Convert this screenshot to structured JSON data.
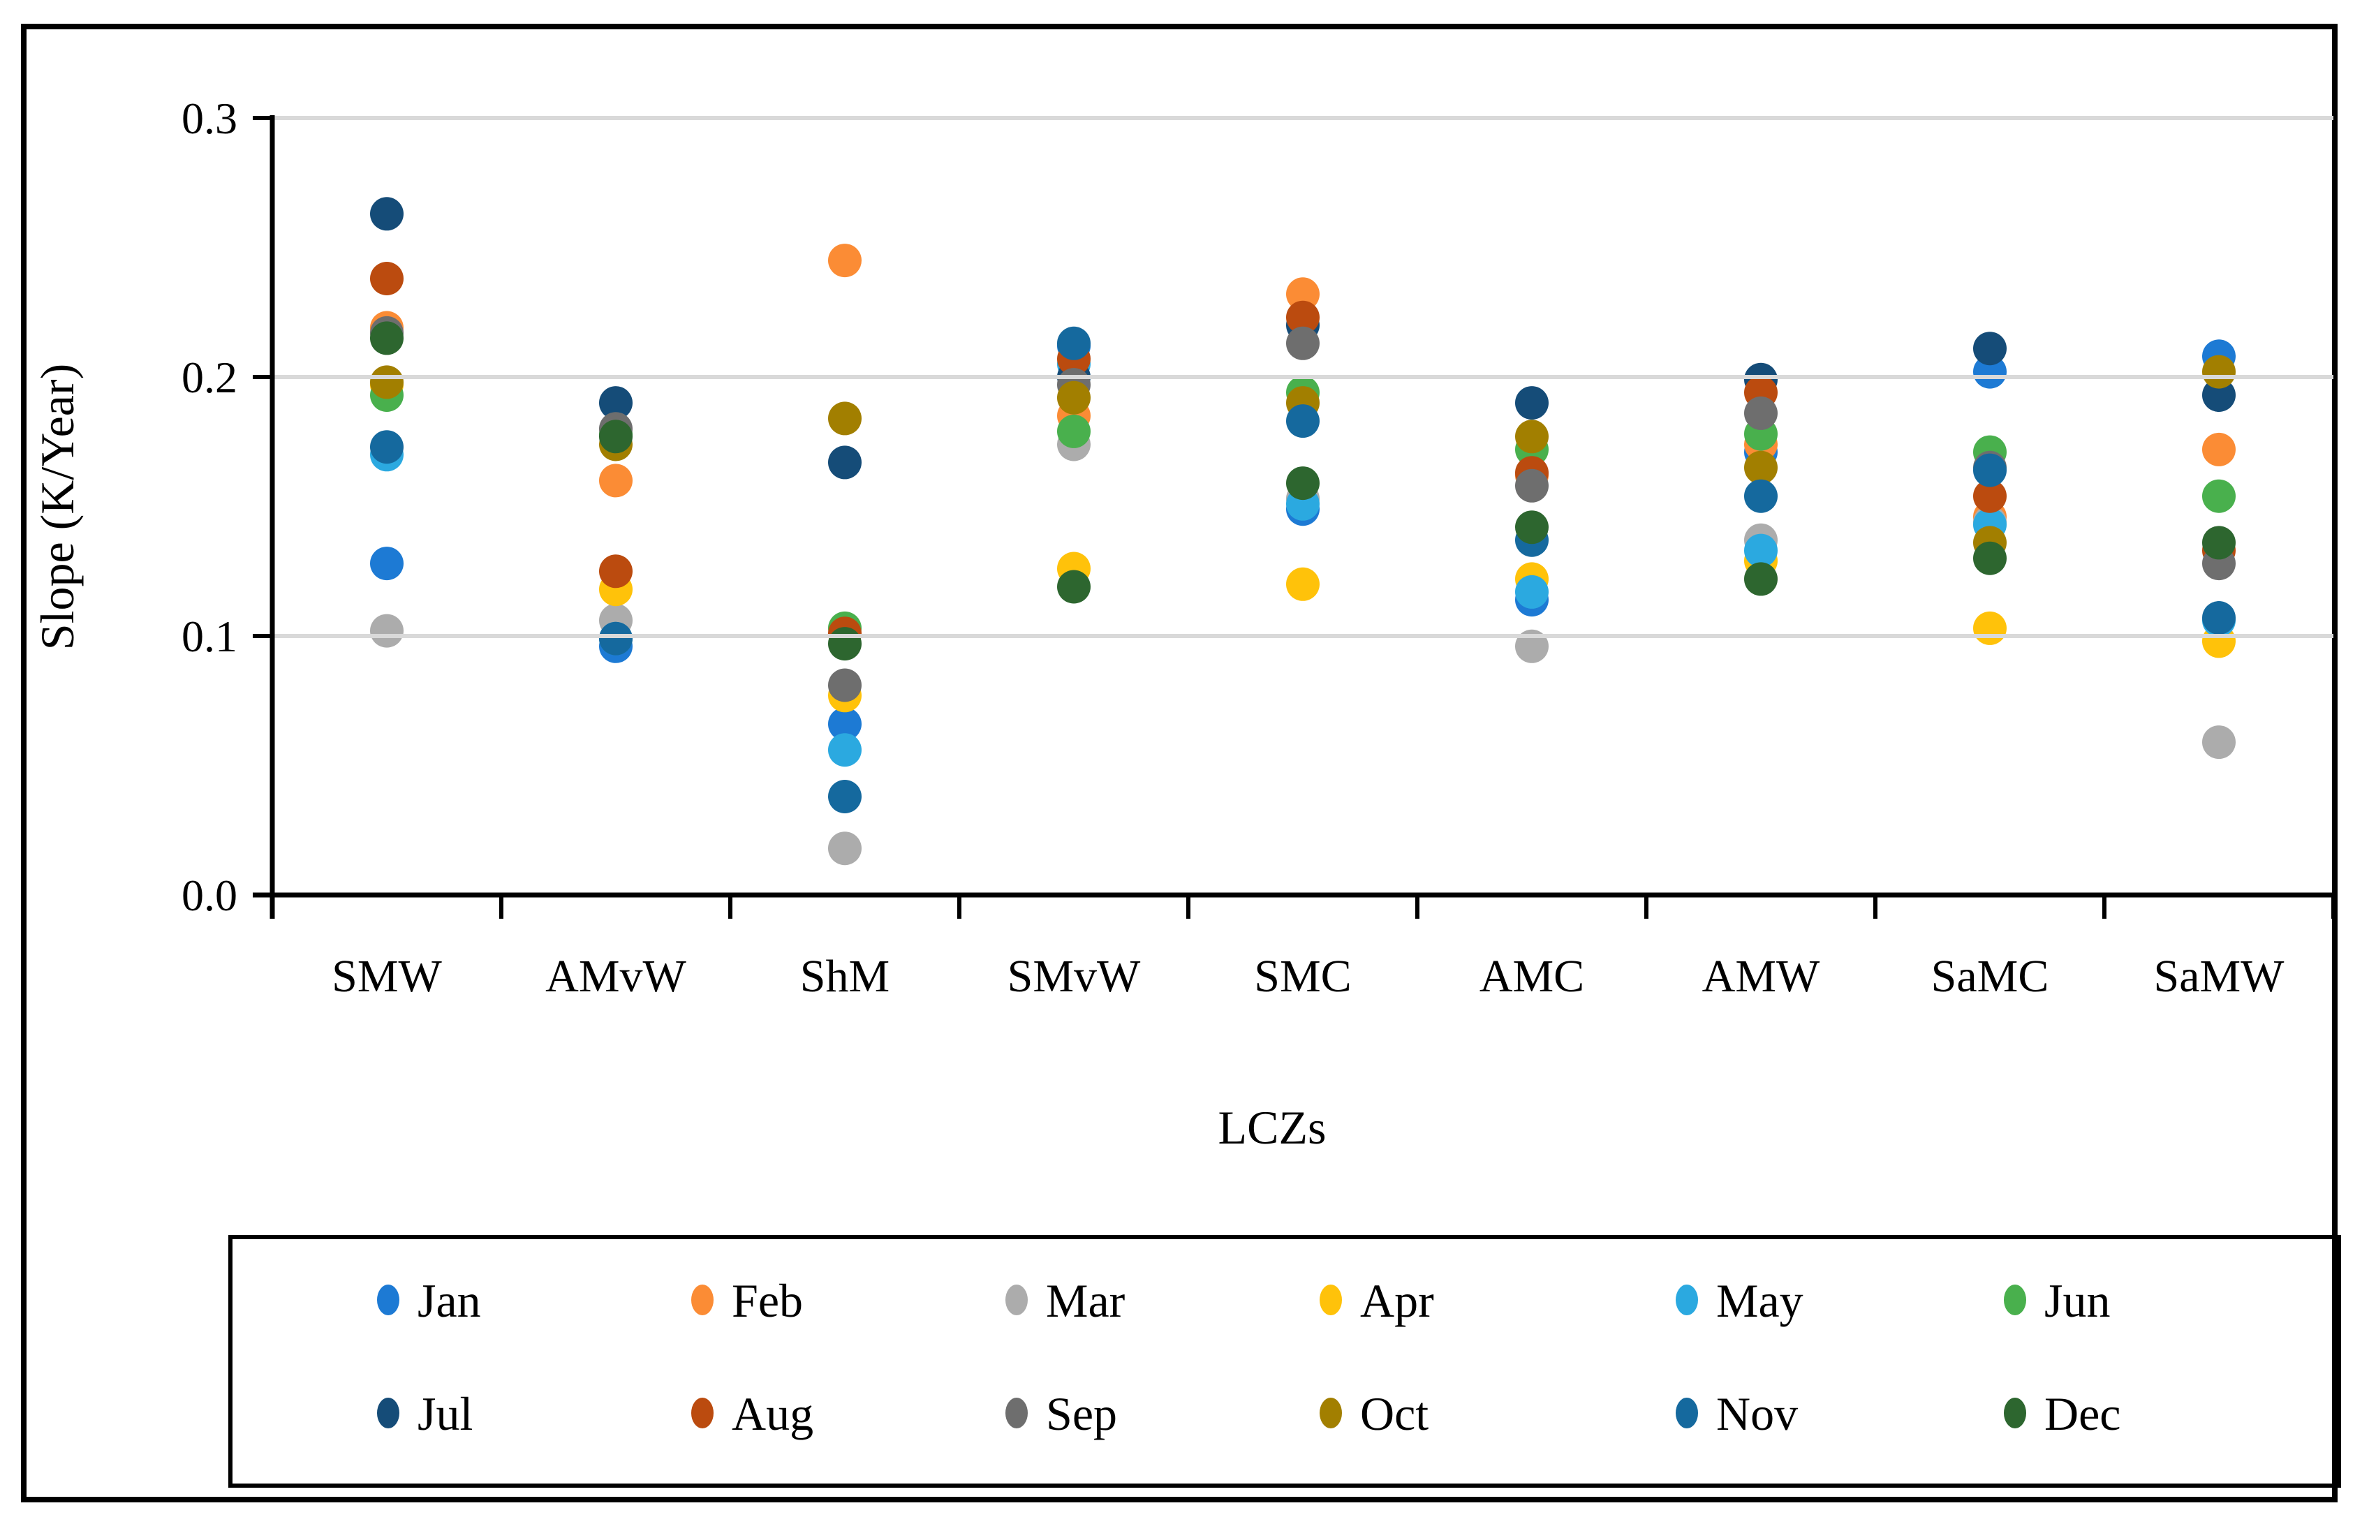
{
  "figure": {
    "background": "#FFFFFF",
    "frame_color": "#000000"
  },
  "chart_data": {
    "type": "scatter",
    "title": "",
    "xlabel": "LCZs",
    "ylabel": "Slope (K/Year)",
    "ylim": [
      0.0,
      0.3
    ],
    "ytick_labels": [
      "0.0",
      "0.1",
      "0.2",
      "0.3"
    ],
    "grid": "horizontal",
    "gridline_color": "#D9D9D9",
    "axis_color": "#000000",
    "legend_position": "bottom",
    "legend_rows": [
      [
        "Jan",
        "Feb",
        "Mar",
        "Apr",
        "May",
        "Jun"
      ],
      [
        "Jul",
        "Aug",
        "Sep",
        "Oct",
        "Nov",
        "Dec"
      ]
    ],
    "categories": [
      "SMW",
      "AMvW",
      "ShM",
      "SMvW",
      "SMC",
      "AMC",
      "AMW",
      "SaMC",
      "SaMW"
    ],
    "series": [
      {
        "name": "Jan",
        "color": "#1D7AD4",
        "values": [
          0.128,
          0.096,
          0.066,
          0.212,
          0.149,
          0.114,
          0.171,
          0.202,
          0.208
        ]
      },
      {
        "name": "Feb",
        "color": "#FB8C35",
        "values": [
          0.219,
          0.16,
          0.245,
          0.185,
          0.232,
          0.162,
          0.174,
          0.146,
          0.172
        ]
      },
      {
        "name": "Mar",
        "color": "#ACACAC",
        "values": [
          0.102,
          0.106,
          0.018,
          0.174,
          0.153,
          0.096,
          0.137,
          0.144,
          0.059
        ]
      },
      {
        "name": "Apr",
        "color": "#FFC20A",
        "values": [
          0.197,
          0.118,
          0.077,
          0.126,
          0.12,
          0.122,
          0.129,
          0.103,
          0.098
        ]
      },
      {
        "name": "May",
        "color": "#2BA9E0",
        "values": [
          0.17,
          0.099,
          0.056,
          0.205,
          0.151,
          0.117,
          0.133,
          0.143,
          0.106
        ]
      },
      {
        "name": "Jun",
        "color": "#49B04D",
        "values": [
          0.193,
          0.178,
          0.103,
          0.179,
          0.194,
          0.172,
          0.178,
          0.171,
          0.154
        ]
      },
      {
        "name": "Jul",
        "color": "#154C78",
        "values": [
          0.263,
          0.19,
          0.167,
          0.2,
          0.22,
          0.19,
          0.199,
          0.211,
          0.193
        ]
      },
      {
        "name": "Aug",
        "color": "#BB4B0F",
        "values": [
          0.238,
          0.125,
          0.101,
          0.207,
          0.223,
          0.163,
          0.194,
          0.154,
          0.133
        ]
      },
      {
        "name": "Sep",
        "color": "#6E6E6E",
        "values": [
          0.217,
          0.18,
          0.081,
          0.197,
          0.213,
          0.158,
          0.186,
          0.165,
          0.128
        ]
      },
      {
        "name": "Oct",
        "color": "#A27F00",
        "values": [
          0.198,
          0.174,
          0.184,
          0.192,
          0.19,
          0.177,
          0.165,
          0.136,
          0.202
        ]
      },
      {
        "name": "Nov",
        "color": "#15699E",
        "values": [
          0.173,
          0.099,
          0.038,
          0.213,
          0.183,
          0.137,
          0.154,
          0.164,
          0.107
        ]
      },
      {
        "name": "Dec",
        "color": "#2D662F",
        "values": [
          0.215,
          0.177,
          0.097,
          0.119,
          0.159,
          0.142,
          0.122,
          0.13,
          0.136
        ]
      }
    ]
  }
}
